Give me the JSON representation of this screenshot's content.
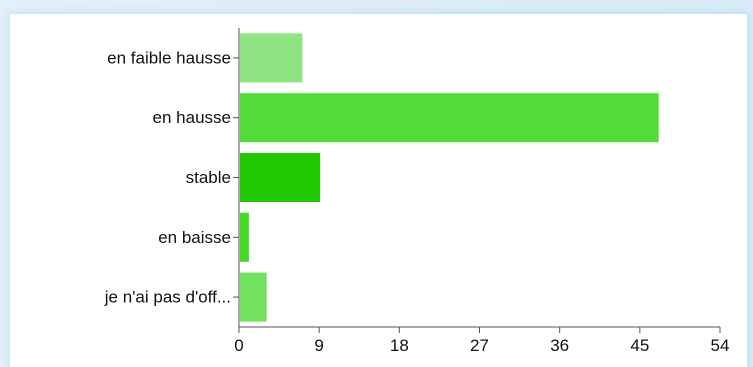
{
  "chart_data": {
    "type": "bar",
    "orientation": "horizontal",
    "categories": [
      "en faible hausse",
      "en hausse",
      "stable",
      "en baisse",
      "je n'ai pas d'off..."
    ],
    "values": [
      7,
      47,
      9,
      1,
      3
    ],
    "colors": [
      "#8ee383",
      "#52dc37",
      "#20c800",
      "#42db24",
      "#72e15f"
    ],
    "title": "",
    "xlabel": "",
    "ylabel": "",
    "xlim": [
      0,
      54
    ],
    "xticks": [
      "0",
      "9",
      "18",
      "27",
      "36",
      "45",
      "54"
    ],
    "grid": false,
    "legend": "none"
  }
}
